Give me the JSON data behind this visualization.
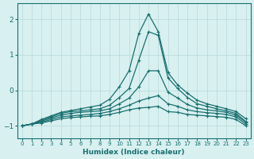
{
  "xlabel": "Humidex (Indice chaleur)",
  "background_color": "#d8f0f0",
  "grid_color": "#b8d8d8",
  "line_color": "#1a7070",
  "xlim": [
    -0.5,
    23.5
  ],
  "ylim": [
    -1.35,
    2.45
  ],
  "yticks": [
    -1,
    0,
    1,
    2
  ],
  "xticks": [
    0,
    1,
    2,
    3,
    4,
    5,
    6,
    7,
    8,
    9,
    10,
    11,
    12,
    13,
    14,
    15,
    16,
    17,
    18,
    19,
    20,
    21,
    22,
    23
  ],
  "series": [
    [
      -1.0,
      -0.95,
      -0.82,
      -0.72,
      -0.62,
      -0.57,
      -0.52,
      -0.47,
      -0.42,
      -0.25,
      0.1,
      0.55,
      1.6,
      2.15,
      1.65,
      0.5,
      0.15,
      -0.08,
      -0.28,
      -0.38,
      -0.45,
      -0.52,
      -0.6,
      -0.8
    ],
    [
      -1.0,
      -0.95,
      -0.85,
      -0.75,
      -0.65,
      -0.6,
      -0.58,
      -0.55,
      -0.52,
      -0.42,
      -0.2,
      0.05,
      0.85,
      1.65,
      1.55,
      0.35,
      0.05,
      -0.2,
      -0.38,
      -0.45,
      -0.52,
      -0.58,
      -0.65,
      -0.88
    ],
    [
      -1.0,
      -0.95,
      -0.87,
      -0.78,
      -0.7,
      -0.65,
      -0.62,
      -0.6,
      -0.58,
      -0.52,
      -0.38,
      -0.22,
      0.1,
      0.55,
      0.55,
      -0.05,
      -0.22,
      -0.4,
      -0.5,
      -0.55,
      -0.58,
      -0.62,
      -0.7,
      -0.9
    ],
    [
      -1.0,
      -0.95,
      -0.9,
      -0.82,
      -0.75,
      -0.72,
      -0.7,
      -0.68,
      -0.65,
      -0.6,
      -0.52,
      -0.42,
      -0.3,
      -0.22,
      -0.15,
      -0.38,
      -0.45,
      -0.55,
      -0.6,
      -0.63,
      -0.65,
      -0.68,
      -0.75,
      -0.95
    ],
    [
      -1.0,
      -0.95,
      -0.92,
      -0.86,
      -0.8,
      -0.77,
      -0.75,
      -0.73,
      -0.72,
      -0.68,
      -0.62,
      -0.55,
      -0.5,
      -0.48,
      -0.45,
      -0.6,
      -0.62,
      -0.68,
      -0.7,
      -0.72,
      -0.74,
      -0.76,
      -0.82,
      -1.0
    ]
  ],
  "markersize": 2.5,
  "linewidth": 0.9
}
